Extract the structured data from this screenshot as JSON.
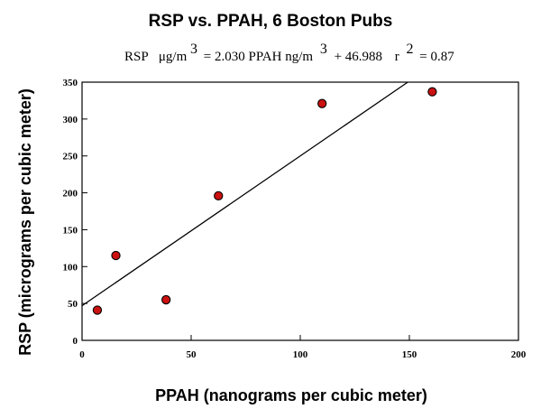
{
  "chart_data": {
    "type": "scatter",
    "title": "RSP vs. PPAH, 6 Boston Pubs",
    "equation": {
      "lhs": "RSP",
      "lhs_unit_base": "μg/m",
      "lhs_unit_exp": "3",
      "mid": "= 2.030 PPAH ng/m",
      "mid_exp": "3",
      "tail": "+ 46.988",
      "r_label": "r",
      "r_exp": "2",
      "r_value": "= 0.87"
    },
    "xlabel": "PPAH (nanograms per cubic meter)",
    "ylabel": "RSP (micrograms per cubic meter)",
    "xlim": [
      0,
      200
    ],
    "ylim": [
      0,
      350
    ],
    "x_ticks": [
      "0",
      "50",
      "100",
      "150",
      "200"
    ],
    "y_ticks": [
      "0",
      "50",
      "100",
      "150",
      "200",
      "250",
      "300",
      "350"
    ],
    "points": [
      {
        "x": 7,
        "y": 41
      },
      {
        "x": 15.5,
        "y": 115
      },
      {
        "x": 38.5,
        "y": 55
      },
      {
        "x": 62.5,
        "y": 196
      },
      {
        "x": 110,
        "y": 321
      },
      {
        "x": 160.5,
        "y": 337
      }
    ],
    "fit": {
      "slope": 2.03,
      "intercept": 46.988
    },
    "grid": false,
    "colors": {
      "marker_fill": "#cc1111",
      "marker_stroke": "#000000",
      "line": "#000000"
    }
  }
}
